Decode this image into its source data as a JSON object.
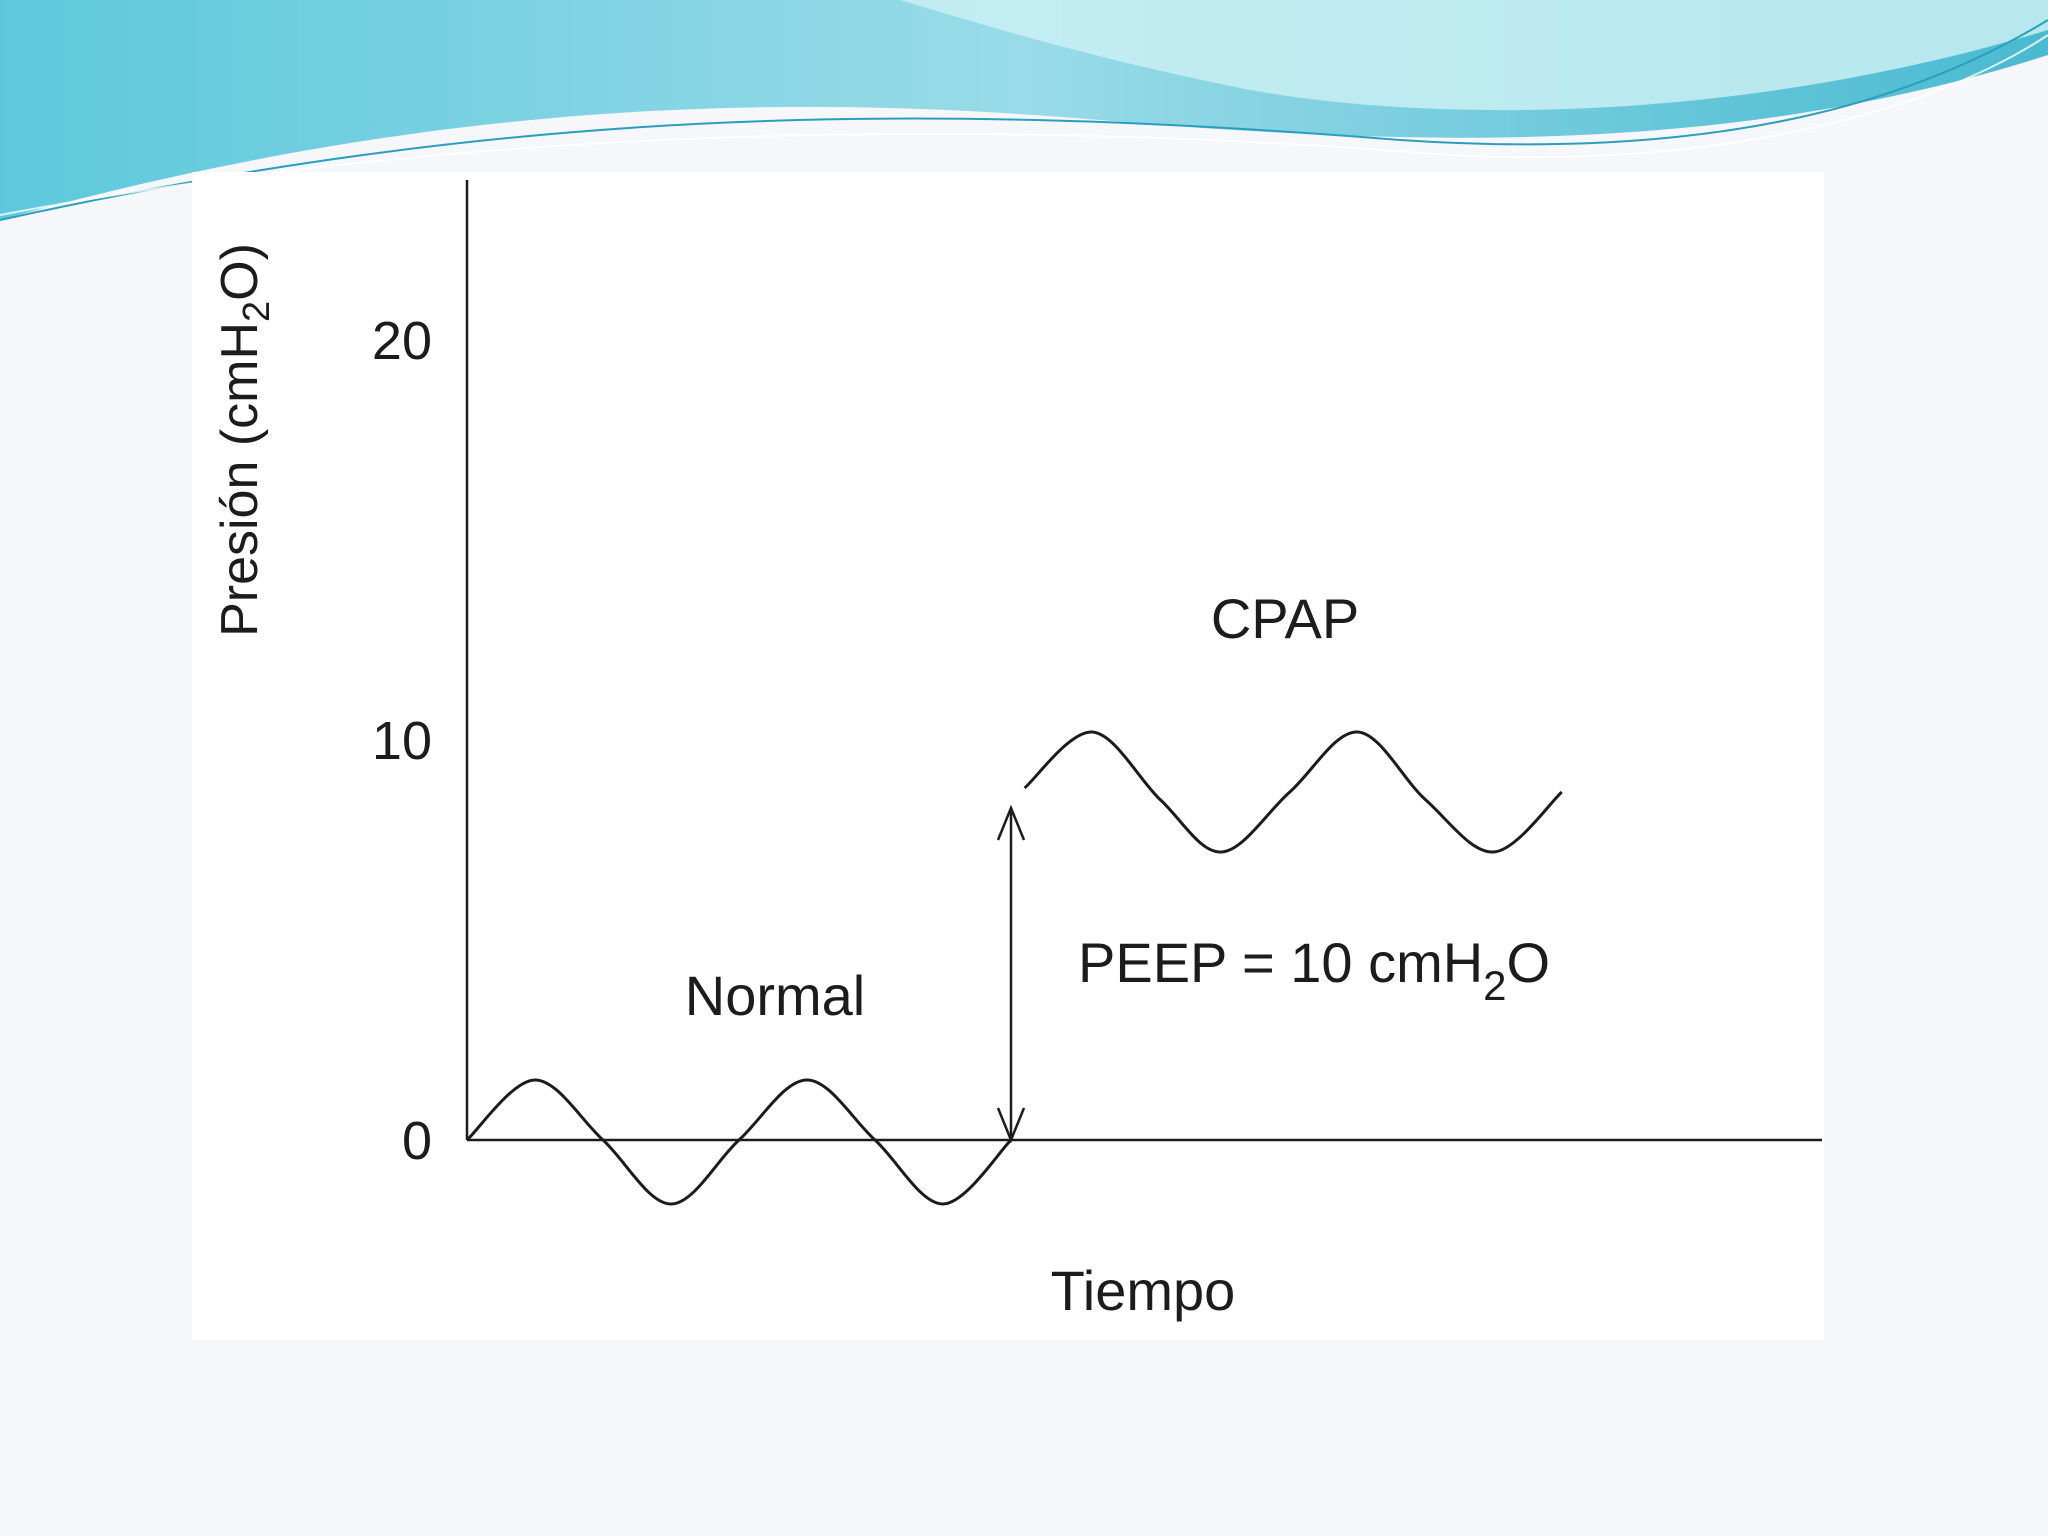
{
  "colors": {
    "background": "#f6f7fb",
    "banner_light": "#aee6ee",
    "banner_mid": "#5fc8dc",
    "banner_dark": "#2aa8c4",
    "ink": "#1c1c1c"
  },
  "chart_data": {
    "type": "line",
    "title": "",
    "ylabel_main": "Presión (cmH",
    "ylabel_sub": "2",
    "ylabel_end": "O)",
    "xlabel": "Tiempo",
    "ylim": [
      -2.5,
      24
    ],
    "yticks": [
      0,
      10,
      20
    ],
    "ytick_labels": [
      "0",
      "10",
      "20"
    ],
    "series": [
      {
        "name": "Normal",
        "points": [
          [
            0,
            0
          ],
          [
            1,
            1.5
          ],
          [
            2,
            0
          ],
          [
            3,
            -1.6
          ],
          [
            4,
            0
          ],
          [
            5,
            1.5
          ],
          [
            6,
            0
          ],
          [
            7,
            -1.6
          ],
          [
            8,
            0
          ]
        ]
      },
      {
        "name": "CPAP",
        "points": [
          [
            8.2,
            8.8
          ],
          [
            9.2,
            10.2
          ],
          [
            10.2,
            8.5
          ],
          [
            11.1,
            7.2
          ],
          [
            12.1,
            8.7
          ],
          [
            13.1,
            10.2
          ],
          [
            14.1,
            8.5
          ],
          [
            15.1,
            7.2
          ],
          [
            16.1,
            8.7
          ]
        ]
      }
    ],
    "annotations": {
      "normal_label": "Normal",
      "cpap_label": "CPAP",
      "peep_main": "PEEP = 10 cmH",
      "peep_sub": "2",
      "peep_end": "O"
    }
  }
}
